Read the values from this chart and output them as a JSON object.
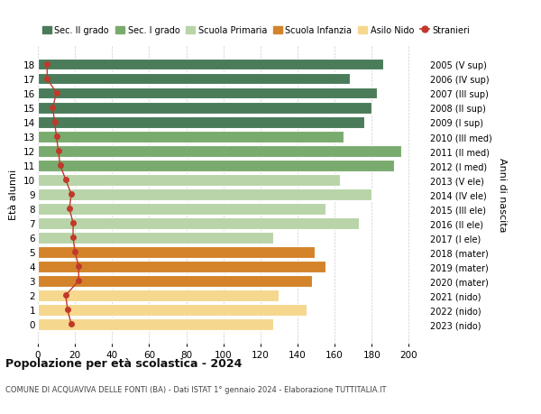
{
  "ages": [
    18,
    17,
    16,
    15,
    14,
    13,
    12,
    11,
    10,
    9,
    8,
    7,
    6,
    5,
    4,
    3,
    2,
    1,
    0
  ],
  "years": [
    "2005 (V sup)",
    "2006 (IV sup)",
    "2007 (III sup)",
    "2008 (II sup)",
    "2009 (I sup)",
    "2010 (III med)",
    "2011 (II med)",
    "2012 (I med)",
    "2013 (V ele)",
    "2014 (IV ele)",
    "2015 (III ele)",
    "2016 (II ele)",
    "2017 (I ele)",
    "2018 (mater)",
    "2019 (mater)",
    "2020 (mater)",
    "2021 (nido)",
    "2022 (nido)",
    "2023 (nido)"
  ],
  "values": [
    186,
    168,
    183,
    180,
    176,
    165,
    196,
    192,
    163,
    180,
    155,
    173,
    127,
    149,
    155,
    148,
    130,
    145,
    127
  ],
  "stranieri": [
    5,
    5,
    10,
    8,
    9,
    10,
    11,
    12,
    15,
    18,
    17,
    19,
    19,
    20,
    22,
    22,
    15,
    16,
    18
  ],
  "bar_colors": [
    "#4a7c59",
    "#4a7c59",
    "#4a7c59",
    "#4a7c59",
    "#4a7c59",
    "#7aab6e",
    "#7aab6e",
    "#7aab6e",
    "#b8d4a8",
    "#b8d4a8",
    "#b8d4a8",
    "#b8d4a8",
    "#b8d4a8",
    "#d4832a",
    "#d4832a",
    "#d4832a",
    "#f5d78e",
    "#f5d78e",
    "#f5d78e"
  ],
  "legend_labels": [
    "Sec. II grado",
    "Sec. I grado",
    "Scuola Primaria",
    "Scuola Infanzia",
    "Asilo Nido",
    "Stranieri"
  ],
  "legend_colors": [
    "#4a7c59",
    "#7aab6e",
    "#b8d4a8",
    "#d4832a",
    "#f5d78e",
    "#c0392b"
  ],
  "stranieri_color": "#c0392b",
  "ylabel_right": "Anni di nascita",
  "title": "Popolazione per eta scolastica - 2024",
  "subtitle": "COMUNE DI ACQUAVIVA DELLE FONTI (BA) - Dati ISTAT 1° gennaio 2024 - Elaborazione TUTTITALIA.IT",
  "xlim": [
    0,
    210
  ],
  "xticks": [
    0,
    20,
    40,
    60,
    80,
    100,
    120,
    140,
    160,
    180,
    200
  ],
  "bg_color": "#ffffff",
  "grid_color": "#cccccc"
}
